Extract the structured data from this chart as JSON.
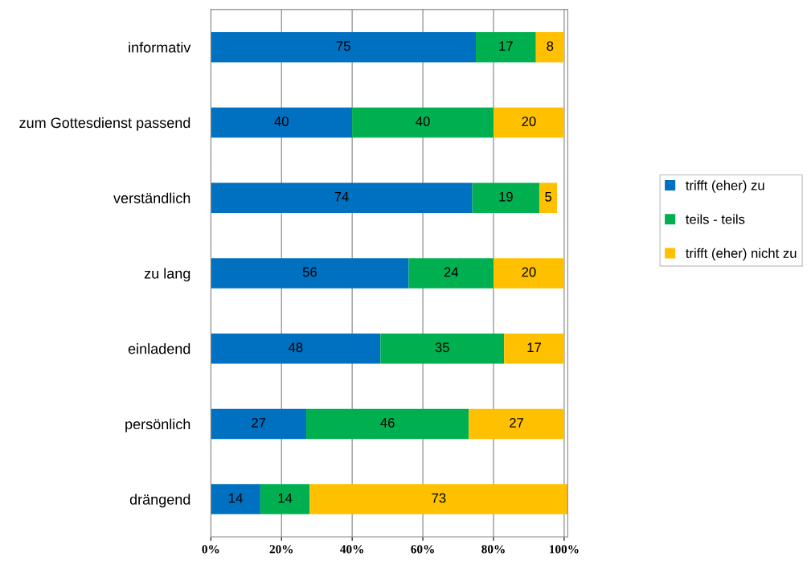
{
  "chart_data": {
    "type": "bar",
    "orientation": "horizontal",
    "stacked": true,
    "categories": [
      "informativ",
      "zum Gottesdienst passend",
      "verständlich",
      "zu lang",
      "einladend",
      "persönlich",
      "drängend"
    ],
    "series": [
      {
        "name": "trifft (eher) zu",
        "color": "#0070c0",
        "values": [
          75,
          40,
          74,
          56,
          48,
          27,
          14
        ]
      },
      {
        "name": "teils - teils",
        "color": "#00b050",
        "values": [
          17,
          40,
          19,
          24,
          35,
          46,
          14
        ]
      },
      {
        "name": "trifft (eher) nicht zu",
        "color": "#ffc000",
        "values": [
          8,
          20,
          5,
          20,
          17,
          27,
          73
        ]
      }
    ],
    "xlim": [
      0,
      101
    ],
    "xticks": [
      {
        "value": 0,
        "label": "0%"
      },
      {
        "value": 20,
        "label": "20%"
      },
      {
        "value": 40,
        "label": "40%"
      },
      {
        "value": 60,
        "label": "60%"
      },
      {
        "value": 80,
        "label": "80%"
      },
      {
        "value": 100,
        "label": "100%"
      }
    ],
    "grid": "x",
    "legend": "right",
    "data_labels": true
  }
}
